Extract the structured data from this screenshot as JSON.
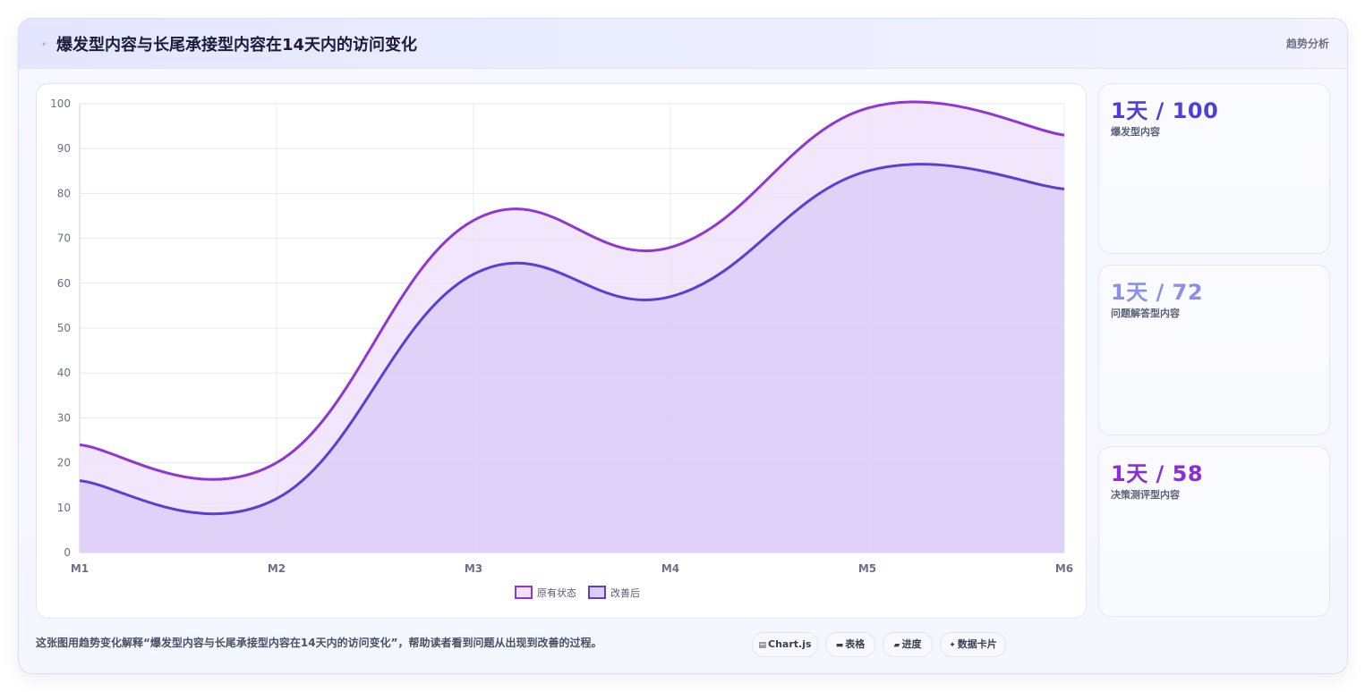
{
  "header": {
    "icon": "lightning-icon",
    "title": "爆发型内容与长尾承接型内容在14天内的访问变化",
    "tag": "趋势分析"
  },
  "stats": [
    {
      "value": "1天 / 100",
      "label": "爆发型内容",
      "color": "#4f3fd8"
    },
    {
      "value": "1天 / 72",
      "label": "问题解答型内容",
      "color": "#8a8fe8"
    },
    {
      "value": "1天 / 58",
      "label": "决策测评型内容",
      "color": "#8b2fd4"
    }
  ],
  "caption": "这张图用趋势变化解释“爆发型内容与长尾承接型内容在14天内的访问变化”，帮助读者看到问题从出现到改善的过程。",
  "pills": [
    {
      "icon": "chart-icon",
      "glyph": "▤",
      "label": "Chart.js"
    },
    {
      "icon": "table-icon",
      "glyph": "▬",
      "label": "表格"
    },
    {
      "icon": "progress-icon",
      "glyph": "▰",
      "label": "进度"
    },
    {
      "icon": "sparkle-icon",
      "glyph": "✦",
      "label": "数据卡片"
    }
  ],
  "chart_data": {
    "type": "area",
    "categories": [
      "M1",
      "M2",
      "M3",
      "M4",
      "M5",
      "M6"
    ],
    "ylim": [
      0,
      100
    ],
    "yticks": [
      0,
      10,
      20,
      30,
      40,
      50,
      60,
      70,
      80,
      90,
      100
    ],
    "grid": true,
    "legend_position": "bottom",
    "series": [
      {
        "name": "原有状态",
        "values": [
          24,
          20,
          74,
          68,
          99,
          93
        ],
        "color": "#9035d6",
        "fill": "#efe2fa"
      },
      {
        "name": "改善后",
        "values": [
          16,
          12,
          62,
          57,
          85,
          81
        ],
        "color": "#5a3fd4",
        "fill": "#dccdf6"
      }
    ]
  }
}
